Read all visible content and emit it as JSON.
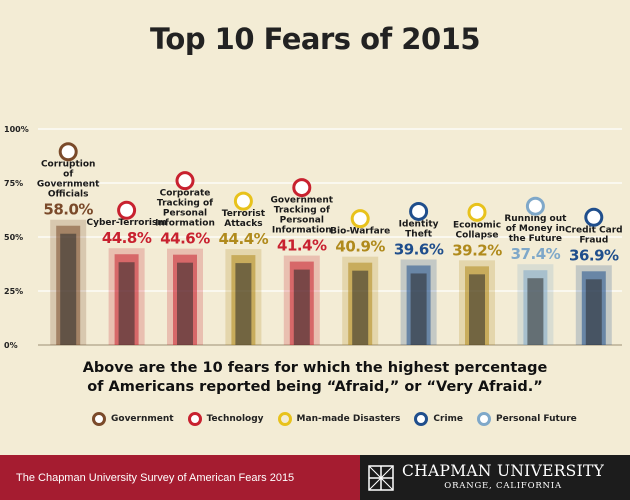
{
  "title": "Top 10 Fears of 2015",
  "chart_data": {
    "type": "bar",
    "title": "Top 10 Fears of 2015",
    "categories": [
      "Corruption of Government Officials",
      "Cyber-Terrorism",
      "Corporate Tracking of Personal Information",
      "Terrorist Attacks",
      "Government Tracking of Personal Information",
      "Bio-Warfare",
      "Identity Theft",
      "Economic Collapse",
      "Running out of Money in the Future",
      "Credit Card Fraud"
    ],
    "values": [
      58.0,
      44.8,
      44.6,
      44.4,
      41.4,
      40.9,
      39.6,
      39.2,
      37.4,
      36.9
    ],
    "value_labels": [
      "58.0%",
      "44.8%",
      "44.6%",
      "44.4%",
      "41.4%",
      "40.9%",
      "39.6%",
      "39.2%",
      "37.4%",
      "36.9%"
    ],
    "bar_categories": [
      "Government",
      "Technology",
      "Technology",
      "Man-made Disasters",
      "Technology",
      "Man-made Disasters",
      "Crime",
      "Man-made Disasters",
      "Personal Future",
      "Crime"
    ],
    "y_ticks": [
      "0%",
      "25%",
      "50%",
      "75%",
      "100%"
    ],
    "ylim": [
      0,
      100
    ],
    "grid": true,
    "legend_position": "bottom"
  },
  "caption_line1": "Above are the 10 fears for which the highest percentage",
  "caption_line2": "of Americans reported being “Afraid,” or “Very Afraid.”",
  "legend": [
    {
      "label": "Government",
      "icon": "government-icon",
      "color": "#7a4a2a"
    },
    {
      "label": "Technology",
      "icon": "technology-icon",
      "color": "#c8212f"
    },
    {
      "label": "Man-made Disasters",
      "icon": "hazard-icon",
      "color": "#e8c21c"
    },
    {
      "label": "Crime",
      "icon": "crime-icon",
      "color": "#1f4e8c"
    },
    {
      "label": "Personal Future",
      "icon": "personal-future-icon",
      "color": "#7fa8c9"
    }
  ],
  "colors": {
    "government": "#7a4a2a",
    "technology": "#c8212f",
    "manmade": "#b08a1c",
    "crime": "#1f4e8c",
    "future": "#7fa8c9",
    "footer_red": "#a51c30",
    "background": "#f3ecd5"
  },
  "footer": {
    "survey": "The Chapman University Survey of American Fears 2015",
    "university": "CHAPMAN UNIVERSITY",
    "location": "ORANGE, CALIFORNIA"
  }
}
